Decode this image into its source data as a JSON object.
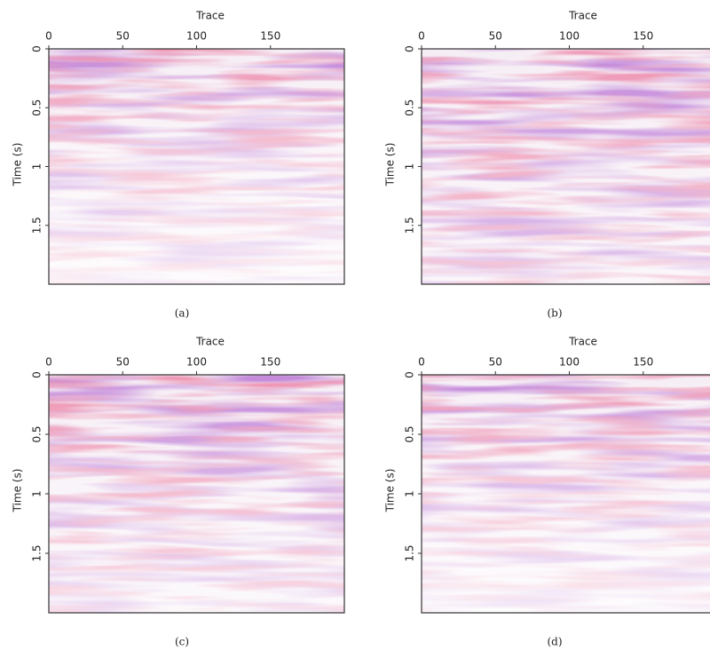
{
  "figures": [
    {
      "caption": "(a)",
      "xlabel": "Trace",
      "ylabel": "Time (s)",
      "xlim": [
        0,
        200
      ],
      "xticks": [
        0,
        50,
        100,
        150
      ],
      "ylim": [
        0,
        2
      ],
      "yticks": [
        0,
        0.5,
        1,
        1.5
      ]
    },
    {
      "caption": "(b)",
      "xlabel": "Trace",
      "ylabel": "Time (s)",
      "xlim": [
        0,
        200
      ],
      "xticks": [
        0,
        50,
        100,
        150
      ],
      "ylim": [
        0,
        2
      ],
      "yticks": [
        0,
        0.5,
        1,
        1.5
      ]
    },
    {
      "caption": "(c)",
      "xlabel": "Trace",
      "ylabel": "Time (s)",
      "xlim": [
        0,
        200
      ],
      "xticks": [
        0,
        50,
        100,
        150
      ],
      "ylim": [
        0,
        2
      ],
      "yticks": [
        0,
        0.5,
        1,
        1.5
      ]
    },
    {
      "caption": "(d)",
      "xlabel": "Trace",
      "ylabel": "Time (s)",
      "xlim": [
        0,
        200
      ],
      "xticks": [
        0,
        50,
        100,
        150
      ],
      "ylim": [
        0,
        2
      ],
      "yticks": [
        0,
        0.5,
        1,
        1.5
      ]
    }
  ]
}
